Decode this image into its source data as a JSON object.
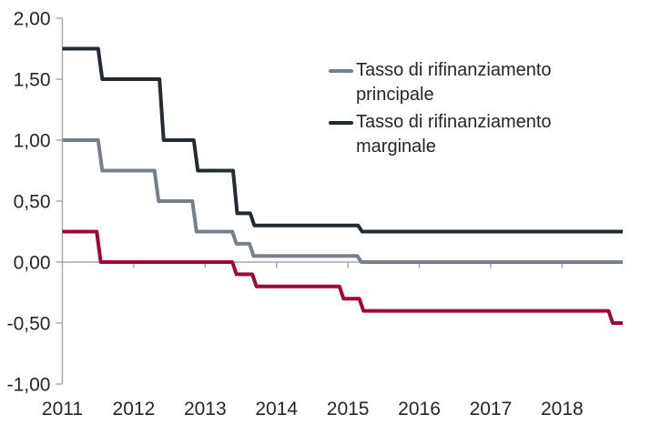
{
  "chart_data": {
    "type": "line",
    "line_style": "step",
    "title": "",
    "xlabel": "",
    "ylabel": "",
    "x_domain": [
      2011,
      2018.85
    ],
    "y_domain": [
      -1.0,
      2.0
    ],
    "grid": false,
    "legend_position": "inside-top-right",
    "axis_color": "#a6a6a6",
    "text_color": "#262626",
    "background_color": "#ffffff",
    "x_ticks": [
      {
        "value": 2011,
        "label": "2011"
      },
      {
        "value": 2012,
        "label": "2012"
      },
      {
        "value": 2013,
        "label": "2013"
      },
      {
        "value": 2014,
        "label": "2014"
      },
      {
        "value": 2015,
        "label": "2015"
      },
      {
        "value": 2016,
        "label": "2016"
      },
      {
        "value": 2017,
        "label": "2017"
      },
      {
        "value": 2018,
        "label": "2018"
      }
    ],
    "y_ticks": [
      {
        "value": 2.0,
        "label": "2,00"
      },
      {
        "value": 1.5,
        "label": "1,50"
      },
      {
        "value": 1.0,
        "label": "1,00"
      },
      {
        "value": 0.5,
        "label": "0,50"
      },
      {
        "value": 0.0,
        "label": "0,00"
      },
      {
        "value": -0.5,
        "label": "-0,50"
      },
      {
        "value": -1.0,
        "label": "-1,00"
      }
    ],
    "series": [
      {
        "name": "Tasso di rifinanziamento principale",
        "color": "#75808a",
        "in_legend": true,
        "x_end": 2018.85,
        "steps": [
          [
            2011.0,
            1.0
          ],
          [
            2011.52,
            0.75
          ],
          [
            2012.31,
            0.5
          ],
          [
            2012.84,
            0.25
          ],
          [
            2013.4,
            0.15
          ],
          [
            2013.64,
            0.05
          ],
          [
            2015.15,
            0.0
          ]
        ]
      },
      {
        "name": "Tasso di rifinanziamento marginale",
        "color": "#222b31",
        "in_legend": true,
        "x_end": 2018.85,
        "steps": [
          [
            2011.0,
            1.75
          ],
          [
            2011.52,
            1.5
          ],
          [
            2012.38,
            1.0
          ],
          [
            2012.86,
            0.75
          ],
          [
            2013.41,
            0.4
          ],
          [
            2013.65,
            0.3
          ],
          [
            2015.16,
            0.25
          ]
        ]
      },
      {
        "name": "",
        "color": "#a0063a",
        "in_legend": false,
        "x_end": 2018.85,
        "steps": [
          [
            2011.0,
            0.25
          ],
          [
            2011.5,
            0.0
          ],
          [
            2013.4,
            -0.1
          ],
          [
            2013.68,
            -0.2
          ],
          [
            2014.9,
            -0.3
          ],
          [
            2015.18,
            -0.4
          ],
          [
            2018.67,
            -0.5
          ]
        ]
      }
    ]
  }
}
